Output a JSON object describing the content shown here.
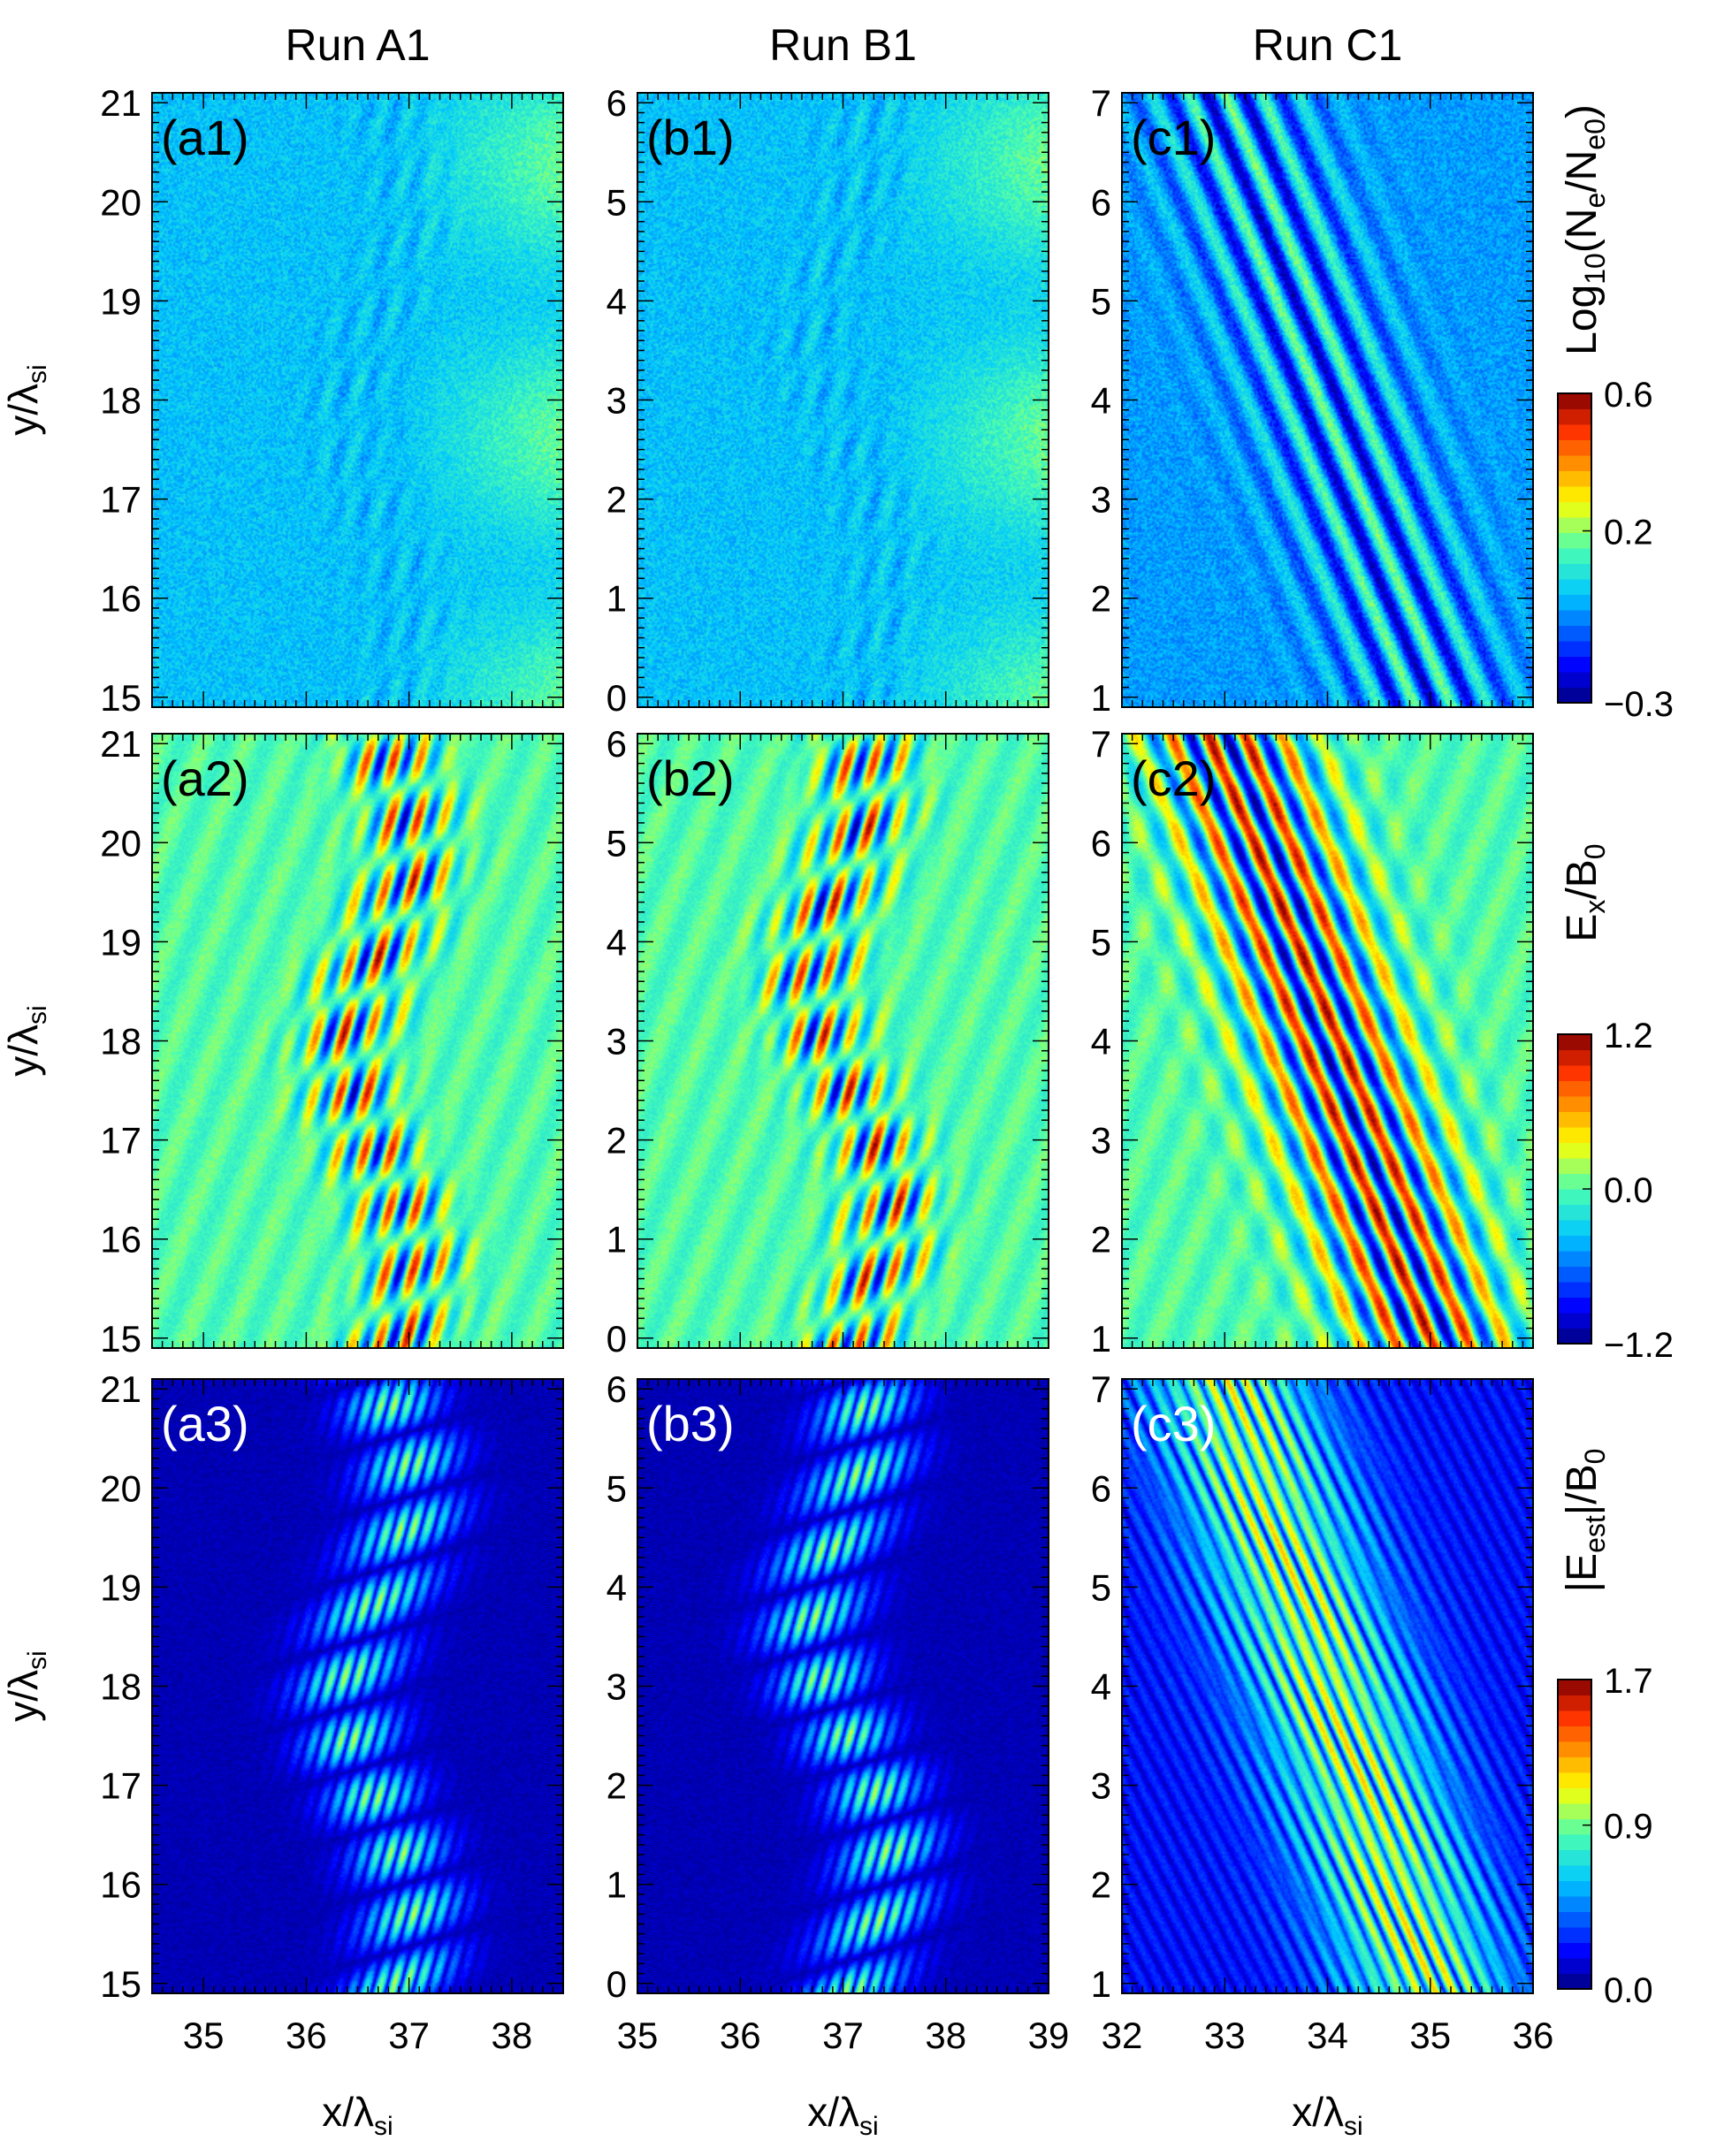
{
  "run_titles": [
    "Run A1",
    "Run B1",
    "Run C1"
  ],
  "axis_labels": {
    "y": "y/λ_si",
    "x": "x/λ_si"
  },
  "colorbars": [
    {
      "label": "Log10(Ne/Ne0)",
      "min": -0.3,
      "max": 0.6,
      "ticks": [
        "0.6",
        "0.2",
        "−0.3"
      ],
      "tick_values": [
        0.6,
        0.2,
        -0.3
      ]
    },
    {
      "label": "Ex/B0",
      "min": -1.2,
      "max": 1.2,
      "ticks": [
        "1.2",
        "0.0",
        "−1.2"
      ],
      "tick_values": [
        1.2,
        0.0,
        -1.2
      ]
    },
    {
      "label": "|Eest|/B0",
      "min": 0.0,
      "max": 1.7,
      "ticks": [
        "1.7",
        "0.9",
        "0.0"
      ],
      "tick_values": [
        1.7,
        0.9,
        0.0
      ]
    }
  ],
  "chart_data": [
    {
      "panel": "a1",
      "type": "heatmap",
      "run": "Run A1",
      "quantity": "Log10(Ne/Ne0)",
      "xlim": [
        34.5,
        38.5
      ],
      "ylim": [
        14.9,
        21.1
      ],
      "xticks": [
        35,
        36,
        37,
        38
      ],
      "yticks": [
        15,
        16,
        17,
        18,
        19,
        20,
        21
      ],
      "clim": [
        -0.3,
        0.6
      ]
    },
    {
      "panel": "b1",
      "type": "heatmap",
      "run": "Run B1",
      "quantity": "Log10(Ne/Ne0)",
      "xlim": [
        35,
        39
      ],
      "ylim": [
        -0.1,
        6.1
      ],
      "xticks": [
        35,
        36,
        37,
        38,
        39
      ],
      "yticks": [
        0,
        1,
        2,
        3,
        4,
        5,
        6
      ],
      "clim": [
        -0.3,
        0.6
      ]
    },
    {
      "panel": "c1",
      "type": "heatmap",
      "run": "Run C1",
      "quantity": "Log10(Ne/Ne0)",
      "xlim": [
        32,
        36
      ],
      "ylim": [
        0.9,
        7.1
      ],
      "xticks": [
        32,
        33,
        34,
        35,
        36
      ],
      "yticks": [
        1,
        2,
        3,
        4,
        5,
        6,
        7
      ],
      "clim": [
        -0.3,
        0.6
      ]
    },
    {
      "panel": "a2",
      "type": "heatmap",
      "run": "Run A1",
      "quantity": "Ex/B0",
      "xlim": [
        34.5,
        38.5
      ],
      "ylim": [
        14.9,
        21.1
      ],
      "xticks": [
        35,
        36,
        37,
        38
      ],
      "yticks": [
        15,
        16,
        17,
        18,
        19,
        20,
        21
      ],
      "clim": [
        -1.2,
        1.2
      ]
    },
    {
      "panel": "b2",
      "type": "heatmap",
      "run": "Run B1",
      "quantity": "Ex/B0",
      "xlim": [
        35,
        39
      ],
      "ylim": [
        -0.1,
        6.1
      ],
      "xticks": [
        35,
        36,
        37,
        38,
        39
      ],
      "yticks": [
        0,
        1,
        2,
        3,
        4,
        5,
        6
      ],
      "clim": [
        -1.2,
        1.2
      ]
    },
    {
      "panel": "c2",
      "type": "heatmap",
      "run": "Run C1",
      "quantity": "Ex/B0",
      "xlim": [
        32,
        36
      ],
      "ylim": [
        0.9,
        7.1
      ],
      "xticks": [
        32,
        33,
        34,
        35,
        36
      ],
      "yticks": [
        1,
        2,
        3,
        4,
        5,
        6,
        7
      ],
      "clim": [
        -1.2,
        1.2
      ]
    },
    {
      "panel": "a3",
      "type": "heatmap",
      "run": "Run A1",
      "quantity": "|Eest|/B0",
      "xlim": [
        34.5,
        38.5
      ],
      "ylim": [
        14.9,
        21.1
      ],
      "xticks": [
        35,
        36,
        37,
        38
      ],
      "yticks": [
        15,
        16,
        17,
        18,
        19,
        20,
        21
      ],
      "clim": [
        0.0,
        1.7
      ]
    },
    {
      "panel": "b3",
      "type": "heatmap",
      "run": "Run B1",
      "quantity": "|Eest|/B0",
      "xlim": [
        35,
        39
      ],
      "ylim": [
        -0.1,
        6.1
      ],
      "xticks": [
        35,
        36,
        37,
        38,
        39
      ],
      "yticks": [
        0,
        1,
        2,
        3,
        4,
        5,
        6
      ],
      "clim": [
        0.0,
        1.7
      ]
    },
    {
      "panel": "c3",
      "type": "heatmap",
      "run": "Run C1",
      "quantity": "|Eest|/B0",
      "xlim": [
        32,
        36
      ],
      "ylim": [
        0.9,
        7.1
      ],
      "xticks": [
        32,
        33,
        34,
        35,
        36
      ],
      "yticks": [
        1,
        2,
        3,
        4,
        5,
        6,
        7
      ],
      "clim": [
        0.0,
        1.7
      ]
    }
  ]
}
